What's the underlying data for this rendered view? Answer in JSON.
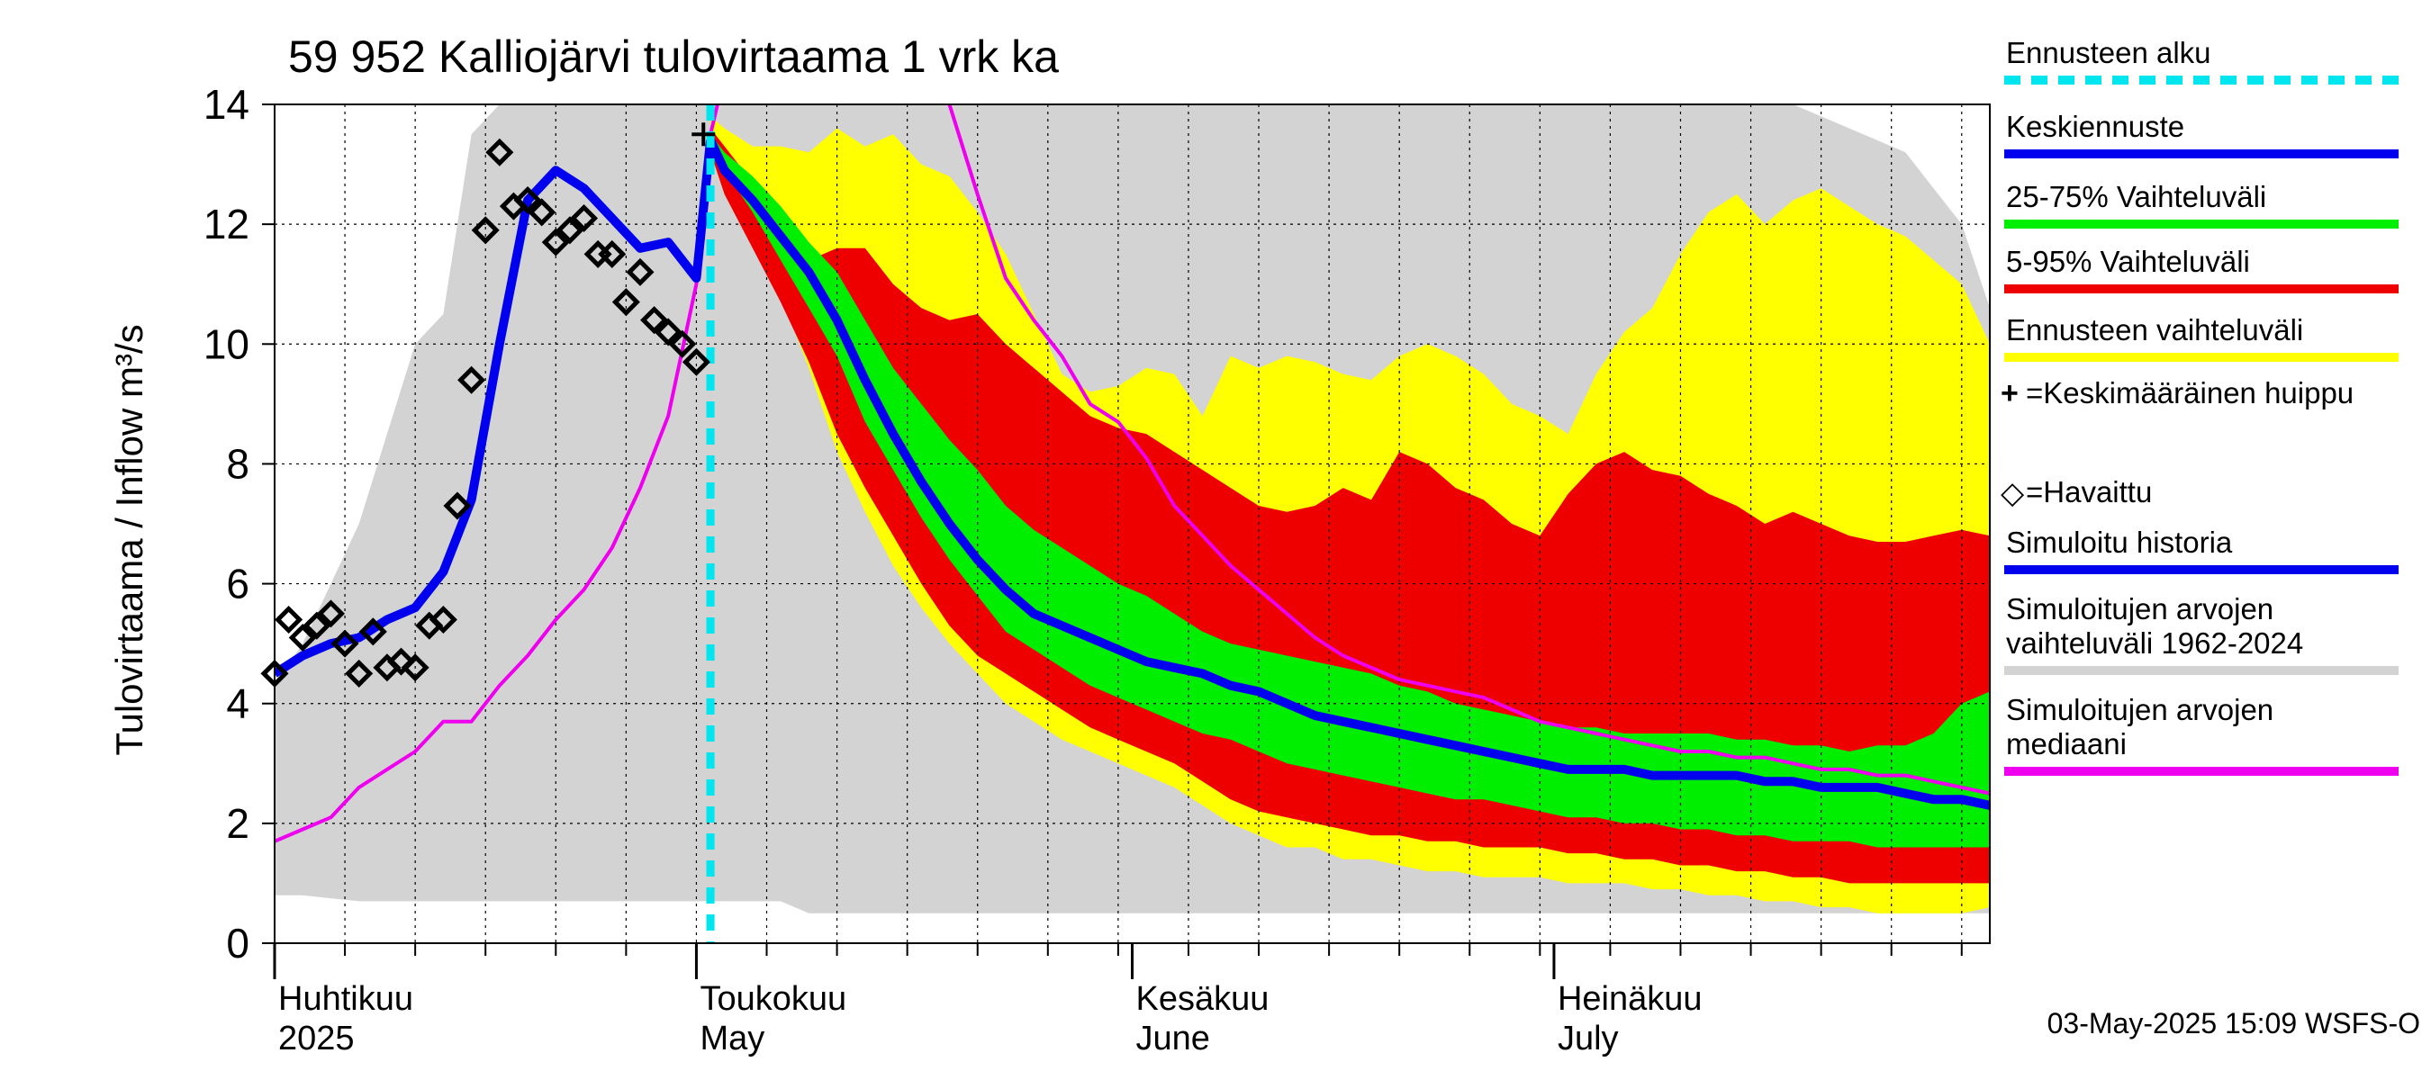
{
  "title": "59 952 Kalliojärvi tulovirtaama 1 vrk ka",
  "y_axis_label": "Tulovirtaama / Inflow    m³/s",
  "timestamp": "03-May-2025 15:09 WSFS-O",
  "months": [
    {
      "fi": "Huhtikuu",
      "en": "2025",
      "key": "apr"
    },
    {
      "fi": "Toukokuu",
      "en": "May",
      "key": "may"
    },
    {
      "fi": "Kesäkuu",
      "en": "June",
      "key": "jun"
    },
    {
      "fi": "Heinäkuu",
      "en": "July",
      "key": "jul"
    }
  ],
  "legend": [
    {
      "label": "Ennusteen alku",
      "color": "#00e5ee",
      "style": "dashed"
    },
    {
      "label": "Keskiennuste",
      "color": "#0000ee",
      "style": "line"
    },
    {
      "label": "25-75% Vaihteluväli",
      "color": "#00ee00",
      "style": "line"
    },
    {
      "label": "5-95% Vaihteluväli",
      "color": "#ee0000",
      "style": "line"
    },
    {
      "label": "Ennusteen vaihteluväli",
      "color": "#ffff00",
      "style": "line"
    },
    {
      "label": "=Keskimääräinen huippu",
      "glyph": "+",
      "style": "glyph"
    },
    {
      "label": "=Havaittu",
      "glyph": "◇",
      "style": "glyph"
    },
    {
      "label": "Simuloitu historia",
      "color": "#0000ee",
      "style": "line"
    },
    {
      "label": "Simuloitujen arvojen vaihteluväli 1962-2024",
      "color": "#d3d3d3",
      "style": "line"
    },
    {
      "label": "Simuloitujen arvojen mediaani",
      "color": "#ee00ee",
      "style": "line"
    }
  ],
  "chart_data": {
    "type": "area",
    "x_axis": "date (days from 2025-04-01)",
    "ylim": [
      0,
      14
    ],
    "yticks": [
      0,
      2,
      4,
      6,
      8,
      10,
      12,
      14
    ],
    "xlim_days": [
      0,
      122
    ],
    "forecast_start_day": 31,
    "grid": true,
    "x": [
      0,
      2,
      4,
      6,
      8,
      10,
      12,
      14,
      16,
      18,
      20,
      22,
      24,
      26,
      28,
      30,
      31,
      32,
      34,
      36,
      38,
      40,
      42,
      44,
      46,
      48,
      50,
      52,
      54,
      56,
      58,
      60,
      62,
      64,
      66,
      68,
      70,
      72,
      74,
      76,
      78,
      80,
      82,
      84,
      86,
      88,
      90,
      92,
      94,
      96,
      98,
      100,
      102,
      104,
      106,
      108,
      110,
      112,
      114,
      116,
      118,
      120,
      122
    ],
    "series": [
      {
        "name": "Simuloitujen arvojen vaihteluväli 1962-2024",
        "color": "#d3d3d3",
        "lower": [
          0.8,
          0.8,
          0.75,
          0.7,
          0.7,
          0.7,
          0.7,
          0.7,
          0.7,
          0.7,
          0.7,
          0.7,
          0.7,
          0.7,
          0.7,
          0.7,
          0.7,
          0.7,
          0.7,
          0.7,
          0.5,
          0.5,
          0.5,
          0.5,
          0.5,
          0.5,
          0.5,
          0.5,
          0.5,
          0.5,
          0.5,
          0.5,
          0.5,
          0.5,
          0.5,
          0.5,
          0.5,
          0.5,
          0.5,
          0.5,
          0.5,
          0.5,
          0.5,
          0.5,
          0.5,
          0.5,
          0.5,
          0.5,
          0.5,
          0.5,
          0.5,
          0.5,
          0.5,
          0.5,
          0.5,
          0.5,
          0.5,
          0.5,
          0.5,
          0.5,
          0.5,
          0.5,
          0.5
        ],
        "upper": [
          4.3,
          5.0,
          6.0,
          7.0,
          8.5,
          10.0,
          10.5,
          13.5,
          14.0,
          14.0,
          14.0,
          14.0,
          14.0,
          14.0,
          14.0,
          14.0,
          14.0,
          14.0,
          14.0,
          14.0,
          14.0,
          14.0,
          14.0,
          14.0,
          14.0,
          14.0,
          14.0,
          14.0,
          14.0,
          14.0,
          14.0,
          14.0,
          14.0,
          14.0,
          14.0,
          14.0,
          14.0,
          14.0,
          14.0,
          14.0,
          14.0,
          14.0,
          14.0,
          14.0,
          14.0,
          14.0,
          14.0,
          14.0,
          14.0,
          14.0,
          14.0,
          14.0,
          14.0,
          14.0,
          14.0,
          14.0,
          13.8,
          13.6,
          13.4,
          13.2,
          12.6,
          12.0,
          10.6
        ]
      },
      {
        "name": "Ennusteen vaihteluväli",
        "color": "#ffff00",
        "lower": [
          null,
          null,
          null,
          null,
          null,
          null,
          null,
          null,
          null,
          null,
          null,
          null,
          null,
          null,
          null,
          null,
          13.5,
          12.6,
          11.8,
          10.8,
          9.6,
          8.2,
          7.2,
          6.3,
          5.6,
          5.0,
          4.5,
          4.0,
          3.7,
          3.4,
          3.2,
          3.0,
          2.8,
          2.6,
          2.3,
          2.0,
          1.8,
          1.6,
          1.6,
          1.4,
          1.4,
          1.3,
          1.2,
          1.2,
          1.1,
          1.1,
          1.1,
          1.0,
          1.0,
          1.0,
          0.9,
          0.9,
          0.8,
          0.8,
          0.7,
          0.7,
          0.6,
          0.6,
          0.5,
          0.5,
          0.5,
          0.5,
          0.6
        ],
        "upper": [
          null,
          null,
          null,
          null,
          null,
          null,
          null,
          null,
          null,
          null,
          null,
          null,
          null,
          null,
          null,
          null,
          13.8,
          13.6,
          13.3,
          13.3,
          13.2,
          13.6,
          13.3,
          13.5,
          13.0,
          12.8,
          12.2,
          11.5,
          10.5,
          9.5,
          9.2,
          9.3,
          9.6,
          9.5,
          8.8,
          9.8,
          9.6,
          9.8,
          9.7,
          9.5,
          9.4,
          9.8,
          10.0,
          9.8,
          9.5,
          9.0,
          8.8,
          8.5,
          9.5,
          10.2,
          10.6,
          11.5,
          12.2,
          12.5,
          12.0,
          12.4,
          12.6,
          12.3,
          12.0,
          11.8,
          11.4,
          11.0,
          10.0
        ]
      },
      {
        "name": "5-95% Vaihteluväli",
        "color": "#ee0000",
        "lower": [
          null,
          null,
          null,
          null,
          null,
          null,
          null,
          null,
          null,
          null,
          null,
          null,
          null,
          null,
          null,
          null,
          13.2,
          12.5,
          11.6,
          10.7,
          9.7,
          8.5,
          7.6,
          6.8,
          6.0,
          5.3,
          4.8,
          4.5,
          4.2,
          3.9,
          3.6,
          3.4,
          3.2,
          3.0,
          2.7,
          2.4,
          2.2,
          2.1,
          2.0,
          1.9,
          1.8,
          1.8,
          1.7,
          1.7,
          1.6,
          1.6,
          1.6,
          1.5,
          1.5,
          1.4,
          1.4,
          1.3,
          1.3,
          1.2,
          1.2,
          1.1,
          1.1,
          1.0,
          1.0,
          1.0,
          1.0,
          1.0,
          1.0
        ],
        "upper": [
          null,
          null,
          null,
          null,
          null,
          null,
          null,
          null,
          null,
          null,
          null,
          null,
          null,
          null,
          null,
          null,
          13.6,
          13.3,
          12.7,
          12.0,
          11.4,
          11.6,
          11.6,
          11.0,
          10.6,
          10.4,
          10.5,
          10.0,
          9.6,
          9.2,
          8.8,
          8.6,
          8.5,
          8.2,
          7.9,
          7.6,
          7.3,
          7.2,
          7.3,
          7.6,
          7.4,
          8.2,
          8.0,
          7.6,
          7.4,
          7.0,
          6.8,
          7.5,
          8.0,
          8.2,
          7.9,
          7.8,
          7.5,
          7.3,
          7.0,
          7.2,
          7.0,
          6.8,
          6.7,
          6.7,
          6.8,
          6.9,
          6.8
        ]
      },
      {
        "name": "25-75% Vaihteluväli",
        "color": "#00ee00",
        "lower": [
          null,
          null,
          null,
          null,
          null,
          null,
          null,
          null,
          null,
          null,
          null,
          null,
          null,
          null,
          null,
          null,
          13.4,
          12.9,
          12.2,
          11.4,
          10.6,
          9.8,
          8.7,
          7.9,
          7.1,
          6.4,
          5.8,
          5.2,
          4.9,
          4.6,
          4.3,
          4.1,
          3.9,
          3.7,
          3.5,
          3.4,
          3.2,
          3.0,
          2.9,
          2.8,
          2.7,
          2.6,
          2.5,
          2.4,
          2.4,
          2.3,
          2.2,
          2.1,
          2.1,
          2.0,
          2.0,
          1.9,
          1.9,
          1.8,
          1.8,
          1.7,
          1.7,
          1.7,
          1.6,
          1.6,
          1.6,
          1.6,
          1.6
        ],
        "upper": [
          null,
          null,
          null,
          null,
          null,
          null,
          null,
          null,
          null,
          null,
          null,
          null,
          null,
          null,
          null,
          null,
          13.5,
          13.2,
          12.8,
          12.3,
          11.7,
          11.2,
          10.4,
          9.6,
          9.0,
          8.4,
          7.9,
          7.3,
          6.9,
          6.6,
          6.3,
          6.0,
          5.8,
          5.5,
          5.2,
          5.0,
          4.9,
          4.8,
          4.7,
          4.6,
          4.5,
          4.3,
          4.2,
          4.0,
          3.9,
          3.8,
          3.7,
          3.6,
          3.6,
          3.5,
          3.5,
          3.5,
          3.5,
          3.4,
          3.4,
          3.3,
          3.3,
          3.2,
          3.3,
          3.3,
          3.5,
          4.0,
          4.2
        ]
      },
      {
        "name": "Simuloitujen arvojen mediaani",
        "color": "#ee00ee",
        "values": [
          1.7,
          1.9,
          2.1,
          2.6,
          2.9,
          3.2,
          3.7,
          3.7,
          4.3,
          4.8,
          5.4,
          5.9,
          6.6,
          7.6,
          8.8,
          11.0,
          13.5,
          14.5,
          null,
          null,
          null,
          null,
          null,
          null,
          null,
          14.0,
          12.5,
          11.1,
          10.4,
          9.8,
          9.0,
          8.7,
          8.1,
          7.3,
          6.8,
          6.3,
          5.9,
          5.5,
          5.1,
          4.8,
          4.6,
          4.4,
          4.3,
          4.2,
          4.1,
          3.9,
          3.7,
          3.6,
          3.5,
          3.4,
          3.3,
          3.2,
          3.2,
          3.1,
          3.1,
          3.0,
          2.9,
          2.9,
          2.8,
          2.8,
          2.7,
          2.6,
          2.5
        ]
      },
      {
        "name": "Simuloitu historia",
        "color": "#0000ee",
        "values": [
          4.5,
          4.8,
          5.0,
          5.1,
          5.4,
          5.6,
          6.2,
          7.4,
          10.0,
          12.4,
          12.9,
          12.6,
          12.1,
          11.6,
          11.7,
          11.1,
          13.4,
          null,
          null,
          null,
          null,
          null,
          null,
          null,
          null,
          null,
          null,
          null,
          null,
          null,
          null,
          null,
          null,
          null,
          null,
          null,
          null,
          null,
          null,
          null,
          null,
          null,
          null,
          null,
          null,
          null,
          null,
          null,
          null,
          null,
          null,
          null,
          null,
          null,
          null,
          null,
          null,
          null,
          null,
          null,
          null,
          null,
          null
        ]
      },
      {
        "name": "Keskiennuste",
        "color": "#0000ee",
        "values": [
          null,
          null,
          null,
          null,
          null,
          null,
          null,
          null,
          null,
          null,
          null,
          null,
          null,
          null,
          null,
          null,
          13.4,
          12.9,
          12.4,
          11.8,
          11.2,
          10.4,
          9.4,
          8.5,
          7.7,
          7.0,
          6.4,
          5.9,
          5.5,
          5.3,
          5.1,
          4.9,
          4.7,
          4.6,
          4.5,
          4.3,
          4.2,
          4.0,
          3.8,
          3.7,
          3.6,
          3.5,
          3.4,
          3.3,
          3.2,
          3.1,
          3.0,
          2.9,
          2.9,
          2.9,
          2.8,
          2.8,
          2.8,
          2.8,
          2.7,
          2.7,
          2.6,
          2.6,
          2.6,
          2.5,
          2.4,
          2.4,
          2.3
        ]
      },
      {
        "name": "Havaittu",
        "type": "scatter",
        "x": [
          0,
          1,
          2,
          3,
          4,
          5,
          6,
          7,
          8,
          9,
          10,
          11,
          12,
          13,
          14,
          15,
          16,
          17,
          18,
          19,
          20,
          21,
          22,
          23,
          24,
          25,
          26,
          27,
          28,
          29,
          30
        ],
        "values": [
          4.5,
          5.4,
          5.1,
          5.3,
          5.5,
          5.0,
          4.5,
          5.2,
          4.6,
          4.7,
          4.6,
          5.3,
          5.4,
          7.3,
          9.4,
          11.9,
          13.2,
          12.3,
          12.4,
          12.2,
          11.7,
          11.9,
          12.1,
          11.5,
          11.5,
          10.7,
          11.2,
          10.4,
          10.2,
          10.0,
          9.7
        ]
      }
    ],
    "peak_marker": {
      "x": 30.5,
      "y": 13.5,
      "label": "Keskimääräinen huippu"
    }
  }
}
